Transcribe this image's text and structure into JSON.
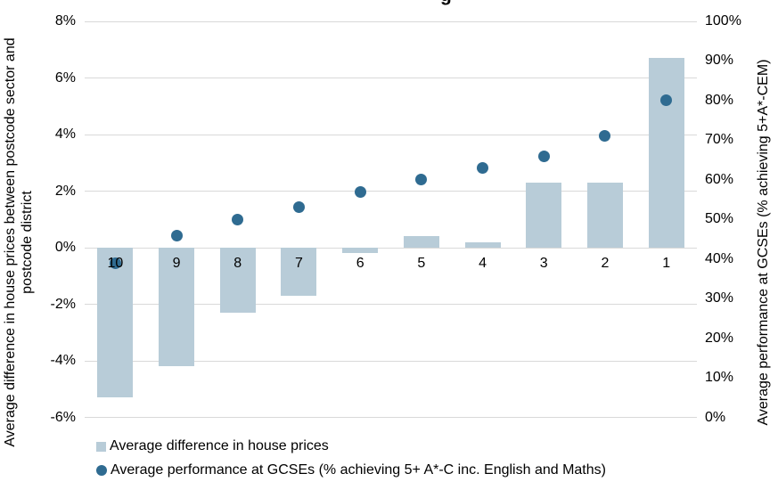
{
  "title_fragment": "g",
  "chart_data": {
    "type": "bar+scatter",
    "categories": [
      "10",
      "9",
      "8",
      "7",
      "6",
      "5",
      "4",
      "3",
      "2",
      "1"
    ],
    "series": [
      {
        "name": "Average difference in house prices",
        "type": "bar",
        "axis": "left",
        "color": "#b8ccd8",
        "values": [
          -5.3,
          -4.2,
          -2.3,
          -1.7,
          -0.2,
          0.4,
          0.2,
          2.3,
          2.3,
          6.7
        ]
      },
      {
        "name": "Average performance at GCSEs (% achieving 5+ A*-C inc. English and Maths)",
        "type": "scatter",
        "axis": "right",
        "color": "#2f6b91",
        "values": [
          39,
          46,
          50,
          53,
          57,
          60,
          63,
          66,
          71,
          80
        ]
      }
    ],
    "left_axis": {
      "label": "Average difference in house prices between postcode sector and postcode district",
      "label_lines": [
        "Average difference in house prices between postcode sector and",
        "postcode district"
      ],
      "ticks": [
        "8%",
        "6%",
        "4%",
        "2%",
        "0%",
        "-2%",
        "-4%",
        "-6%"
      ],
      "min": -6,
      "max": 8,
      "step": 2
    },
    "right_axis": {
      "label": "Average performance at GCSEs (% achieving 5+A*-CEM)",
      "ticks": [
        "100%",
        "90%",
        "80%",
        "70%",
        "60%",
        "50%",
        "40%",
        "30%",
        "20%",
        "10%",
        "0%"
      ],
      "min": 0,
      "max": 100,
      "step": 10
    },
    "grid": true,
    "gridline_color": "#d9d9d9",
    "legend_position": "bottom-left"
  },
  "legend": {
    "items": [
      {
        "label": "Average difference in house prices",
        "marker": "square",
        "color": "#b8ccd8"
      },
      {
        "label": "Average performance at GCSEs (% achieving 5+ A*-C inc. English and Maths)",
        "marker": "circle",
        "color": "#2f6b91"
      }
    ]
  }
}
